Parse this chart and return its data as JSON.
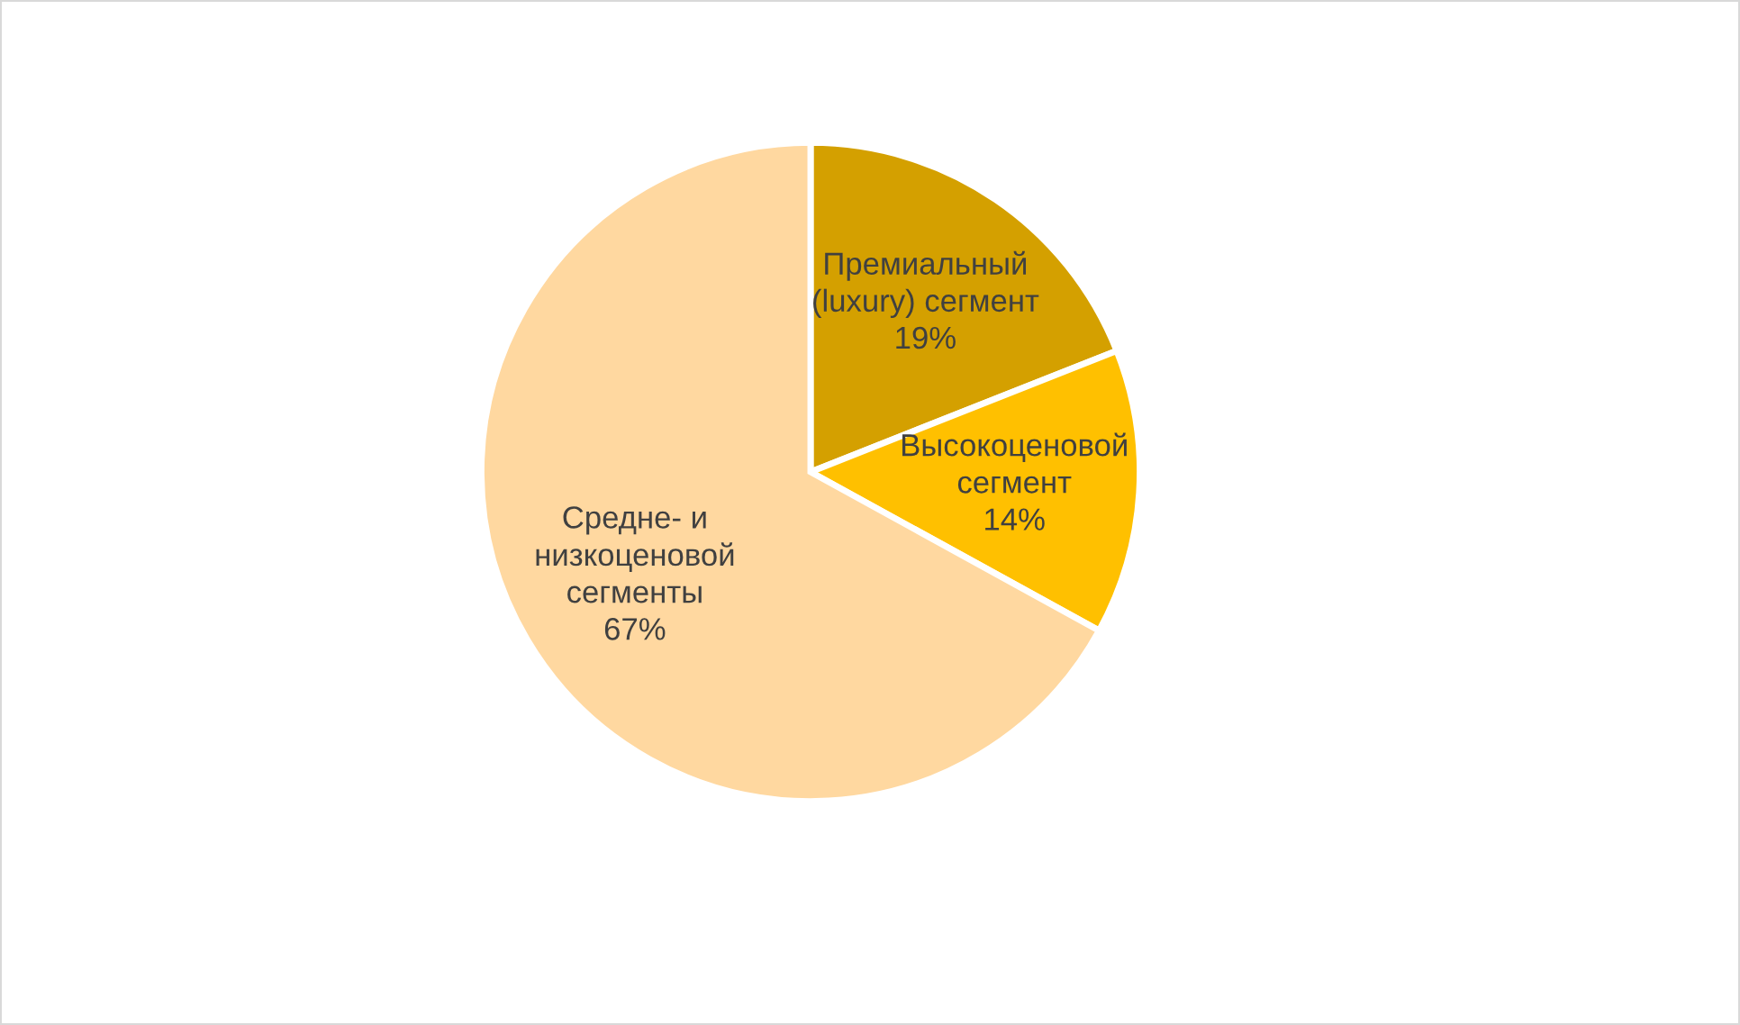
{
  "chart_data": {
    "type": "pie",
    "categories": [
      "Премиальный\n(luxury) сегмент",
      "Высокоценовой\nсегмент",
      "Средне- и\nнизкоценовой\nсегменты"
    ],
    "values": [
      19,
      14,
      67
    ],
    "value_labels": [
      "19%",
      "14%",
      "67%"
    ],
    "colors": [
      "#d4a000",
      "#ffc000",
      "#ffd8a0"
    ],
    "legend": false
  }
}
